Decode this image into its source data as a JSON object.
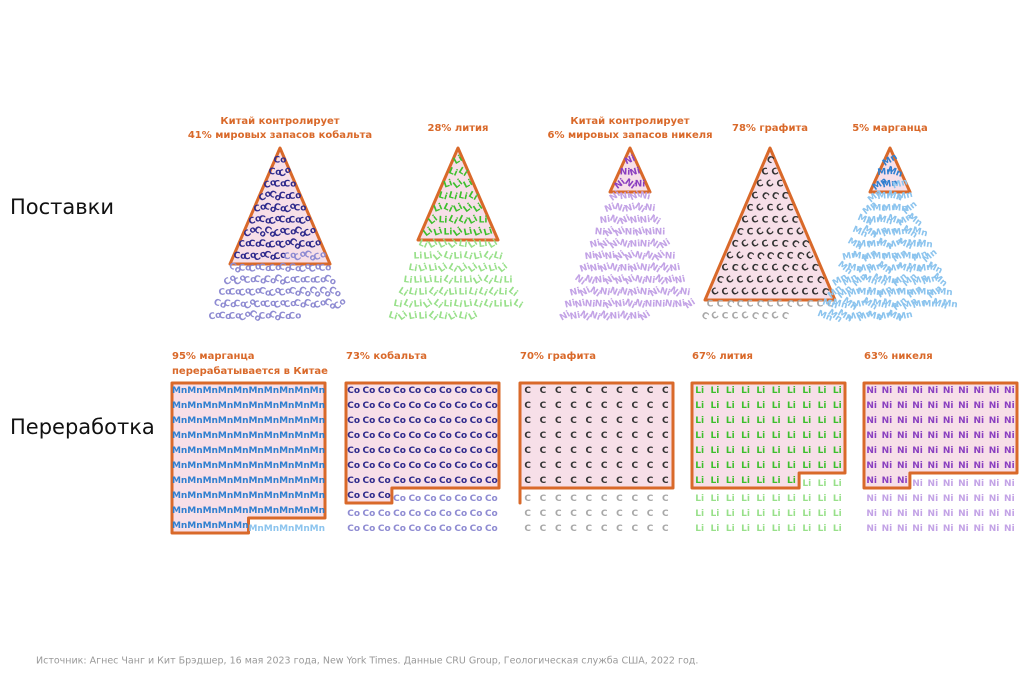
{
  "row_labels": {
    "supply": "Поставки",
    "processing": "Переработка"
  },
  "supply": [
    {
      "label_lines": [
        "Китай контролирует",
        "41% мировых запасов кобальта"
      ],
      "symbol": "Co",
      "percent": 41,
      "color": "#2e2a8c",
      "light_color": "#8e8bd2"
    },
    {
      "label_lines": [
        "28% лития"
      ],
      "symbol": "Li",
      "percent": 28,
      "color": "#3cbf2c",
      "light_color": "#98e08a"
    },
    {
      "label_lines": [
        "Китай контролирует",
        "6% мировых запасов никеля"
      ],
      "symbol": "Ni",
      "percent": 6,
      "color": "#8a3fc0",
      "light_color": "#c3a3e6"
    },
    {
      "label_lines": [
        "78% графита"
      ],
      "symbol": "C",
      "percent": 78,
      "color": "#333333",
      "light_color": "#a8a8a8"
    },
    {
      "label_lines": [
        "5% марганца"
      ],
      "symbol": "Mn",
      "percent": 5,
      "color": "#2f7fd0",
      "light_color": "#8cc4ee"
    }
  ],
  "processing": [
    {
      "label_lines": [
        "95% марганца",
        "перерабатывается в Китае"
      ],
      "symbol": "Mn",
      "percent": 95,
      "color": "#2f7fd0",
      "light_color": "#8cc4ee"
    },
    {
      "label_lines": [
        "73% кобальта"
      ],
      "symbol": "Co",
      "percent": 73,
      "color": "#2e2a8c",
      "light_color": "#8e8bd2"
    },
    {
      "label_lines": [
        "70% графита"
      ],
      "symbol": "C",
      "percent": 70,
      "color": "#333333",
      "light_color": "#a8a8a8"
    },
    {
      "label_lines": [
        "67% лития"
      ],
      "symbol": "Li",
      "percent": 67,
      "color": "#3cbf2c",
      "light_color": "#98e08a"
    },
    {
      "label_lines": [
        "63% никеля"
      ],
      "symbol": "Ni",
      "percent": 63,
      "color": "#8a3fc0",
      "light_color": "#c3a3e6"
    }
  ],
  "source": "Источник: Агнес Чанг и Кит Брэдшер, 16 мая 2023 года, New York Times. Данные CRU Group, Геологическая служба США, 2022 год."
}
